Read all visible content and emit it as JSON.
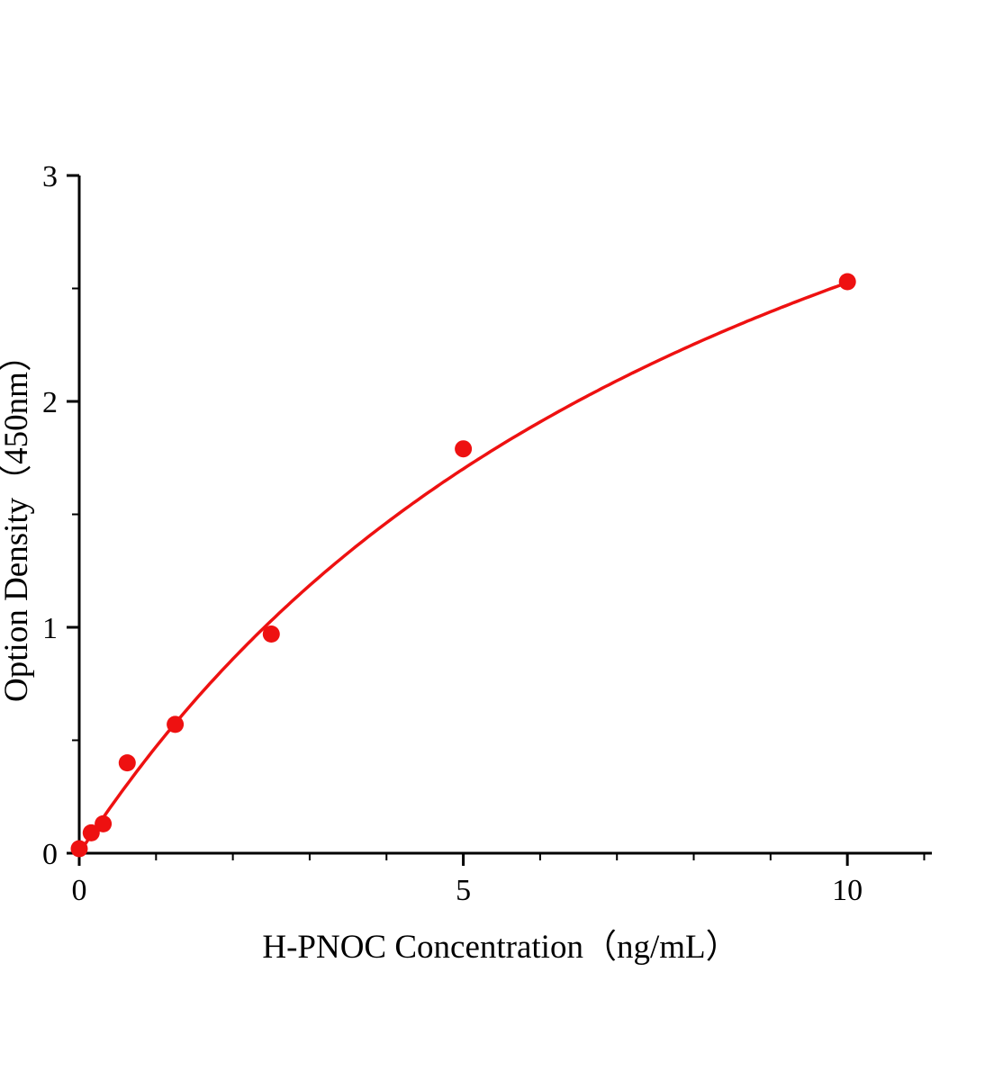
{
  "figure": {
    "background": "#ffffff"
  },
  "chart_data": {
    "type": "scatter",
    "title": "",
    "xlabel": "H-PNOC Concentration（ng/mL）",
    "ylabel": "Option Density（450nm）",
    "series_name": "H-PNOC standard curve",
    "x": [
      0,
      0.156,
      0.312,
      0.625,
      1.25,
      2.5,
      5,
      10
    ],
    "y": [
      0.02,
      0.09,
      0.13,
      0.4,
      0.57,
      0.97,
      1.79,
      2.53
    ],
    "xlim": [
      0,
      11.1
    ],
    "ylim": [
      0,
      3
    ],
    "x_ticks": [
      0,
      5,
      10
    ],
    "y_ticks": [
      0,
      1,
      2,
      3
    ],
    "x_minor_step": 1,
    "y_minor_step": 0.5,
    "tick_direction": "out",
    "grid": false,
    "legend": "none",
    "point_color": "#ee1111",
    "curve_color": "#ee1111",
    "axis_color": "#000000",
    "fit": {
      "type": "hyperbolic",
      "formula": "y = a*x/(b+x)",
      "a": 4.9,
      "b": 9.4,
      "x_range": [
        0,
        10
      ]
    }
  }
}
